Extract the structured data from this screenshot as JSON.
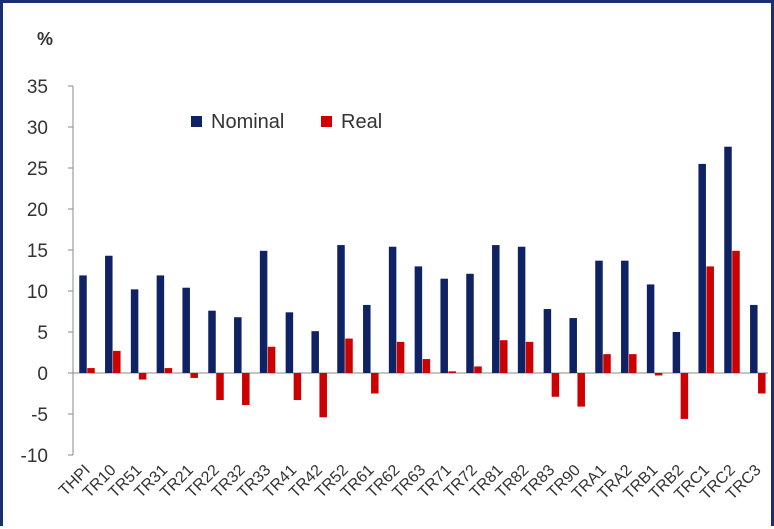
{
  "chart_data": {
    "type": "bar",
    "ylabel": "%",
    "ylim": [
      -10,
      35
    ],
    "yticks": [
      35,
      30,
      25,
      20,
      15,
      10,
      5,
      0,
      -5,
      -10
    ],
    "grid": false,
    "legend_position": "top-left",
    "categories": [
      "THPI",
      "TR10",
      "TR51",
      "TR31",
      "TR21",
      "TR22",
      "TR32",
      "TR33",
      "TR41",
      "TR42",
      "TR52",
      "TR61",
      "TR62",
      "TR63",
      "TR71",
      "TR72",
      "TR81",
      "TR82",
      "TR83",
      "TR90",
      "TRA1",
      "TRA2",
      "TRB1",
      "TRB2",
      "TRC1",
      "TRC2",
      "TRC3"
    ],
    "series": [
      {
        "name": "Nominal",
        "color": "#0f2263",
        "values": [
          11.9,
          14.3,
          10.2,
          11.9,
          10.4,
          7.6,
          6.8,
          14.9,
          7.4,
          5.1,
          15.6,
          8.3,
          15.4,
          13.0,
          11.5,
          12.1,
          15.6,
          15.4,
          7.8,
          6.7,
          13.7,
          13.7,
          10.8,
          5.0,
          25.5,
          27.6,
          8.3
        ]
      },
      {
        "name": "Real",
        "color": "#cc0000",
        "values": [
          0.6,
          2.7,
          -0.8,
          0.6,
          -0.6,
          -3.3,
          -3.9,
          3.2,
          -3.3,
          -5.4,
          4.2,
          -2.5,
          3.8,
          1.7,
          0.2,
          0.8,
          4.0,
          3.8,
          -2.9,
          -4.1,
          2.3,
          2.3,
          -0.3,
          -5.6,
          13.0,
          14.9,
          -2.5
        ]
      }
    ]
  }
}
